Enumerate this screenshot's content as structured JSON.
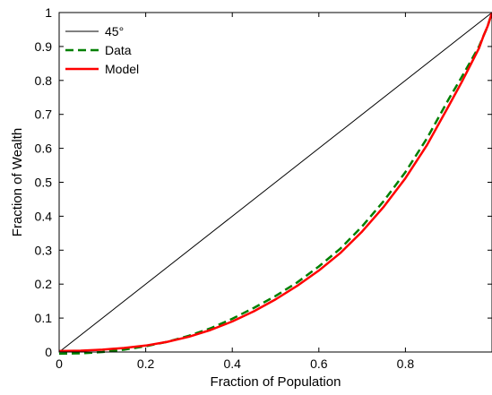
{
  "chart_data": {
    "type": "line",
    "title": "",
    "xlabel": "Fraction of Population",
    "ylabel": "Fraction of Wealth",
    "xlim": [
      0,
      1
    ],
    "ylim": [
      0,
      1
    ],
    "xticks": [
      0,
      0.2,
      0.4,
      0.6,
      0.8
    ],
    "xtick_labels": [
      "0",
      "0.2",
      "0.4",
      "0.6",
      "0.8"
    ],
    "yticks": [
      0,
      0.1,
      0.2,
      0.3,
      0.4,
      0.5,
      0.6,
      0.7,
      0.8,
      0.9,
      1
    ],
    "ytick_labels": [
      "0",
      "0.1",
      "0.2",
      "0.3",
      "0.4",
      "0.5",
      "0.6",
      "0.7",
      "0.8",
      "0.9",
      "1"
    ],
    "grid": false,
    "legend_position": "top-left",
    "series": [
      {
        "name": "45°",
        "color": "#000000",
        "style": "solid",
        "x": [
          0,
          1
        ],
        "y": [
          0,
          1
        ]
      },
      {
        "name": "Data",
        "color": "#008000",
        "style": "dashed",
        "x": [
          0,
          0.05,
          0.1,
          0.15,
          0.2,
          0.25,
          0.3,
          0.35,
          0.4,
          0.45,
          0.5,
          0.55,
          0.6,
          0.65,
          0.7,
          0.75,
          0.8,
          0.85,
          0.9,
          0.93,
          0.95,
          0.97,
          0.98,
          0.99,
          1.0
        ],
        "y": [
          -0.005,
          -0.004,
          0.0,
          0.007,
          0.017,
          0.03,
          0.048,
          0.07,
          0.098,
          0.13,
          0.165,
          0.205,
          0.252,
          0.305,
          0.37,
          0.445,
          0.53,
          0.63,
          0.745,
          0.81,
          0.855,
          0.9,
          0.93,
          0.96,
          1.0
        ]
      },
      {
        "name": "Model",
        "color": "#ff0000",
        "style": "solid",
        "x": [
          0,
          0.05,
          0.1,
          0.15,
          0.2,
          0.25,
          0.3,
          0.35,
          0.4,
          0.45,
          0.5,
          0.55,
          0.6,
          0.65,
          0.7,
          0.75,
          0.8,
          0.85,
          0.9,
          0.93,
          0.95,
          0.97,
          0.98,
          0.99,
          1.0
        ],
        "y": [
          0.003,
          0.004,
          0.007,
          0.012,
          0.019,
          0.03,
          0.045,
          0.065,
          0.09,
          0.12,
          0.155,
          0.195,
          0.24,
          0.292,
          0.355,
          0.428,
          0.512,
          0.61,
          0.725,
          0.795,
          0.845,
          0.895,
          0.93,
          0.96,
          1.0
        ]
      }
    ]
  }
}
